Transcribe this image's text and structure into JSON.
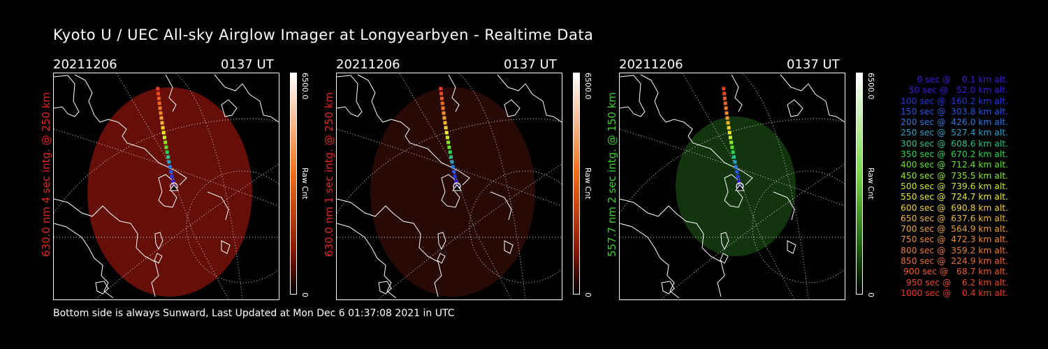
{
  "title": "Kyoto U / UEC All-sky Airglow Imager at Longyearbyen - Realtime Data",
  "footer": "Bottom side is always Sunward, Last Updated at Mon Dec  6 01:37:08 2021 in UTC",
  "panels": [
    {
      "date": "20211206",
      "time": "0137 UT",
      "ylabel": "630.0 nm 4 sec intg. @ 250 km",
      "ylabel_color": "#e0281e",
      "cb_max": "6500.0",
      "cb_min": "0",
      "cb_unit": "Raw Cnt",
      "cb_top_color": "#ffffff",
      "cb_mid_color": "#f07018",
      "cb_low_color": "#8c1808",
      "glow_color": "#6b0f08",
      "glow_opacity": 0.95
    },
    {
      "date": "20211206",
      "time": "0137 UT",
      "ylabel": "630.0 nm 1 sec intg. @ 250 km",
      "ylabel_color": "#e0281e",
      "cb_max": "6500.0",
      "cb_min": "0",
      "cb_unit": "Raw Cnt",
      "cb_top_color": "#ffffff",
      "cb_mid_color": "#f07018",
      "cb_low_color": "#8c1808",
      "glow_color": "#2e0a06",
      "glow_opacity": 0.85
    },
    {
      "date": "20211206",
      "time": "0137 UT",
      "ylabel": "557.7 nm 2 sec intg. @ 150 km",
      "ylabel_color": "#38d02a",
      "cb_max": "6500.0",
      "cb_min": "0",
      "cb_unit": "Raw Cnt",
      "cb_top_color": "#ffffff",
      "cb_mid_color": "#7ad84c",
      "cb_low_color": "#1c5a10",
      "glow_color": "#14380f",
      "glow_opacity": 0.95
    }
  ],
  "legend": [
    {
      "text": "0 sec @    0.1 km alt.",
      "color": "#3a1ee0"
    },
    {
      "text": "50 sec @   52.0 km alt.",
      "color": "#3a1ee0"
    },
    {
      "text": "100 sec @  160.2 km alt.",
      "color": "#2438ea"
    },
    {
      "text": "150 sec @  303.8 km alt.",
      "color": "#2456ea"
    },
    {
      "text": "200 sec @  426.0 km alt.",
      "color": "#2a78e4"
    },
    {
      "text": "250 sec @  527.4 km alt.",
      "color": "#2aa0c8"
    },
    {
      "text": "300 sec @  608.6 km alt.",
      "color": "#22c48a"
    },
    {
      "text": "350 sec @  670.2 km alt.",
      "color": "#28d650"
    },
    {
      "text": "400 sec @  712.4 km alt.",
      "color": "#5ee028"
    },
    {
      "text": "450 sec @  735.5 km alt.",
      "color": "#8ce628"
    },
    {
      "text": "500 sec @  739.6 km alt.",
      "color": "#c6ea2a"
    },
    {
      "text": "550 sec @  724.7 km alt.",
      "color": "#ecec2a"
    },
    {
      "text": "600 sec @  690.8 km alt.",
      "color": "#f2d22a"
    },
    {
      "text": "650 sec @  637.6 km alt.",
      "color": "#f2b82a"
    },
    {
      "text": "700 sec @  564.9 km alt.",
      "color": "#f2a02a"
    },
    {
      "text": "750 sec @  472.3 km alt.",
      "color": "#f28a2a"
    },
    {
      "text": "800 sec @  359.2 km alt.",
      "color": "#f07a2a"
    },
    {
      "text": "850 sec @  224.9 km alt.",
      "color": "#ee6a2a"
    },
    {
      "text": "900 sec @   68.7 km alt.",
      "color": "#ec5a2a"
    },
    {
      "text": "950 sec @    6.2 km alt.",
      "color": "#ea4a2a"
    },
    {
      "text": "1000 sec @    0.4 km alt.",
      "color": "#e83a2a"
    }
  ]
}
